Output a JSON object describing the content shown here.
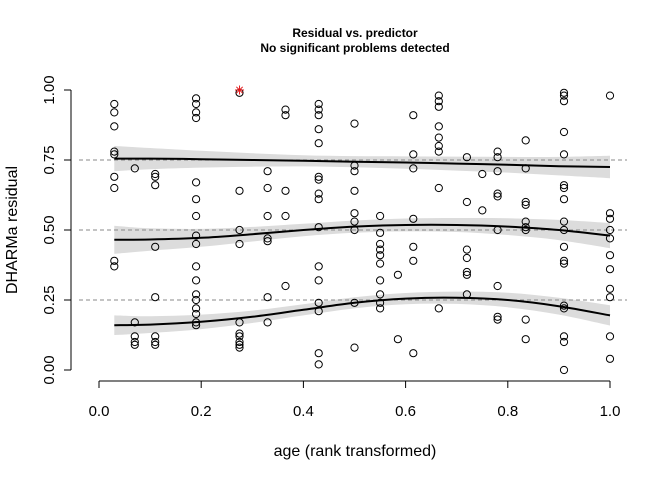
{
  "chart_data": {
    "type": "scatter",
    "title": "Residual vs. predictor",
    "subtitle": "No significant problems detected",
    "xlabel": "age (rank transformed)",
    "ylabel": "DHARMa residual",
    "xlim": [
      0.0,
      1.0
    ],
    "ylim": [
      0.0,
      1.0
    ],
    "x_ticks": [
      "0.0",
      "0.2",
      "0.4",
      "0.6",
      "0.8",
      "1.0"
    ],
    "y_ticks": [
      "0.00",
      "0.25",
      "0.50",
      "0.75",
      "1.00"
    ],
    "reference_lines": [
      0.25,
      0.5,
      0.75
    ],
    "quantile_curves": [
      {
        "x": [
          0.03,
          0.1,
          0.2,
          0.3,
          0.4,
          0.5,
          0.6,
          0.7,
          0.8,
          0.9,
          1.0
        ],
        "y": [
          0.755,
          0.755,
          0.753,
          0.75,
          0.747,
          0.744,
          0.741,
          0.737,
          0.733,
          0.728,
          0.725
        ],
        "band": [
          0.045,
          0.038,
          0.03,
          0.024,
          0.02,
          0.02,
          0.022,
          0.025,
          0.028,
          0.033,
          0.04
        ]
      },
      {
        "x": [
          0.03,
          0.1,
          0.2,
          0.3,
          0.4,
          0.5,
          0.6,
          0.7,
          0.8,
          0.9,
          1.0
        ],
        "y": [
          0.465,
          0.466,
          0.472,
          0.485,
          0.5,
          0.512,
          0.518,
          0.518,
          0.512,
          0.5,
          0.48
        ],
        "band": [
          0.05,
          0.04,
          0.032,
          0.026,
          0.022,
          0.022,
          0.023,
          0.025,
          0.03,
          0.036,
          0.045
        ]
      },
      {
        "x": [
          0.03,
          0.1,
          0.2,
          0.3,
          0.4,
          0.5,
          0.6,
          0.7,
          0.8,
          0.9,
          1.0
        ],
        "y": [
          0.16,
          0.162,
          0.172,
          0.19,
          0.215,
          0.24,
          0.255,
          0.258,
          0.25,
          0.228,
          0.195
        ],
        "band": [
          0.035,
          0.03,
          0.026,
          0.022,
          0.02,
          0.02,
          0.02,
          0.022,
          0.026,
          0.03,
          0.036
        ]
      }
    ],
    "outliers": [
      {
        "x": 0.275,
        "y": 1.0,
        "color": "#e41a1c"
      }
    ],
    "points": [
      [
        0.03,
        0.95
      ],
      [
        0.03,
        0.92
      ],
      [
        0.03,
        0.87
      ],
      [
        0.03,
        0.78
      ],
      [
        0.03,
        0.77
      ],
      [
        0.03,
        0.69
      ],
      [
        0.03,
        0.65
      ],
      [
        0.03,
        0.39
      ],
      [
        0.03,
        0.37
      ],
      [
        0.07,
        0.72
      ],
      [
        0.07,
        0.17
      ],
      [
        0.07,
        0.12
      ],
      [
        0.07,
        0.1
      ],
      [
        0.07,
        0.09
      ],
      [
        0.11,
        0.7
      ],
      [
        0.11,
        0.69
      ],
      [
        0.11,
        0.66
      ],
      [
        0.11,
        0.44
      ],
      [
        0.11,
        0.26
      ],
      [
        0.11,
        0.12
      ],
      [
        0.11,
        0.1
      ],
      [
        0.11,
        0.09
      ],
      [
        0.19,
        0.97
      ],
      [
        0.19,
        0.95
      ],
      [
        0.19,
        0.92
      ],
      [
        0.19,
        0.9
      ],
      [
        0.19,
        0.67
      ],
      [
        0.19,
        0.61
      ],
      [
        0.19,
        0.55
      ],
      [
        0.19,
        0.48
      ],
      [
        0.19,
        0.45
      ],
      [
        0.19,
        0.37
      ],
      [
        0.19,
        0.32
      ],
      [
        0.19,
        0.27
      ],
      [
        0.19,
        0.25
      ],
      [
        0.19,
        0.22
      ],
      [
        0.19,
        0.2
      ],
      [
        0.19,
        0.17
      ],
      [
        0.19,
        0.16
      ],
      [
        0.275,
        0.99
      ],
      [
        0.275,
        0.64
      ],
      [
        0.275,
        0.5
      ],
      [
        0.275,
        0.45
      ],
      [
        0.275,
        0.17
      ],
      [
        0.275,
        0.13
      ],
      [
        0.275,
        0.12
      ],
      [
        0.275,
        0.1
      ],
      [
        0.275,
        0.09
      ],
      [
        0.275,
        0.08
      ],
      [
        0.33,
        0.71
      ],
      [
        0.33,
        0.65
      ],
      [
        0.33,
        0.55
      ],
      [
        0.33,
        0.47
      ],
      [
        0.33,
        0.46
      ],
      [
        0.33,
        0.26
      ],
      [
        0.33,
        0.17
      ],
      [
        0.365,
        0.93
      ],
      [
        0.365,
        0.91
      ],
      [
        0.365,
        0.64
      ],
      [
        0.365,
        0.55
      ],
      [
        0.365,
        0.3
      ],
      [
        0.43,
        0.95
      ],
      [
        0.43,
        0.93
      ],
      [
        0.43,
        0.91
      ],
      [
        0.43,
        0.86
      ],
      [
        0.43,
        0.81
      ],
      [
        0.43,
        0.69
      ],
      [
        0.43,
        0.68
      ],
      [
        0.43,
        0.63
      ],
      [
        0.43,
        0.61
      ],
      [
        0.43,
        0.51
      ],
      [
        0.43,
        0.37
      ],
      [
        0.43,
        0.32
      ],
      [
        0.43,
        0.24
      ],
      [
        0.43,
        0.21
      ],
      [
        0.43,
        0.06
      ],
      [
        0.43,
        0.02
      ],
      [
        0.5,
        0.88
      ],
      [
        0.5,
        0.73
      ],
      [
        0.5,
        0.71
      ],
      [
        0.5,
        0.64
      ],
      [
        0.5,
        0.56
      ],
      [
        0.5,
        0.53
      ],
      [
        0.5,
        0.5
      ],
      [
        0.5,
        0.24
      ],
      [
        0.5,
        0.08
      ],
      [
        0.55,
        0.55
      ],
      [
        0.55,
        0.49
      ],
      [
        0.55,
        0.45
      ],
      [
        0.55,
        0.43
      ],
      [
        0.55,
        0.41
      ],
      [
        0.55,
        0.38
      ],
      [
        0.55,
        0.32
      ],
      [
        0.55,
        0.27
      ],
      [
        0.55,
        0.24
      ],
      [
        0.55,
        0.22
      ],
      [
        0.585,
        0.34
      ],
      [
        0.585,
        0.11
      ],
      [
        0.615,
        0.91
      ],
      [
        0.615,
        0.77
      ],
      [
        0.615,
        0.72
      ],
      [
        0.615,
        0.54
      ],
      [
        0.615,
        0.44
      ],
      [
        0.615,
        0.39
      ],
      [
        0.615,
        0.06
      ],
      [
        0.665,
        0.98
      ],
      [
        0.665,
        0.96
      ],
      [
        0.665,
        0.94
      ],
      [
        0.665,
        0.87
      ],
      [
        0.665,
        0.83
      ],
      [
        0.665,
        0.8
      ],
      [
        0.665,
        0.78
      ],
      [
        0.665,
        0.65
      ],
      [
        0.665,
        0.22
      ],
      [
        0.72,
        0.76
      ],
      [
        0.72,
        0.6
      ],
      [
        0.72,
        0.43
      ],
      [
        0.72,
        0.4
      ],
      [
        0.72,
        0.35
      ],
      [
        0.72,
        0.34
      ],
      [
        0.72,
        0.27
      ],
      [
        0.75,
        0.57
      ],
      [
        0.75,
        0.7
      ],
      [
        0.78,
        0.78
      ],
      [
        0.78,
        0.76
      ],
      [
        0.78,
        0.71
      ],
      [
        0.78,
        0.63
      ],
      [
        0.78,
        0.62
      ],
      [
        0.78,
        0.5
      ],
      [
        0.78,
        0.3
      ],
      [
        0.78,
        0.19
      ],
      [
        0.78,
        0.18
      ],
      [
        0.835,
        0.82
      ],
      [
        0.835,
        0.72
      ],
      [
        0.835,
        0.6
      ],
      [
        0.835,
        0.59
      ],
      [
        0.835,
        0.53
      ],
      [
        0.835,
        0.51
      ],
      [
        0.835,
        0.5
      ],
      [
        0.835,
        0.18
      ],
      [
        0.835,
        0.11
      ],
      [
        0.91,
        0.99
      ],
      [
        0.91,
        0.98
      ],
      [
        0.91,
        0.96
      ],
      [
        0.91,
        0.85
      ],
      [
        0.91,
        0.77
      ],
      [
        0.91,
        0.66
      ],
      [
        0.91,
        0.65
      ],
      [
        0.91,
        0.61
      ],
      [
        0.91,
        0.53
      ],
      [
        0.91,
        0.5
      ],
      [
        0.91,
        0.44
      ],
      [
        0.91,
        0.39
      ],
      [
        0.91,
        0.38
      ],
      [
        0.91,
        0.23
      ],
      [
        0.91,
        0.22
      ],
      [
        0.91,
        0.12
      ],
      [
        0.91,
        0.1
      ],
      [
        0.91,
        0.0
      ],
      [
        1.0,
        0.98
      ],
      [
        1.0,
        0.56
      ],
      [
        1.0,
        0.54
      ],
      [
        1.0,
        0.5
      ],
      [
        1.0,
        0.47
      ],
      [
        1.0,
        0.41
      ],
      [
        1.0,
        0.36
      ],
      [
        1.0,
        0.29
      ],
      [
        1.0,
        0.26
      ],
      [
        1.0,
        0.12
      ],
      [
        1.0,
        0.04
      ]
    ]
  }
}
